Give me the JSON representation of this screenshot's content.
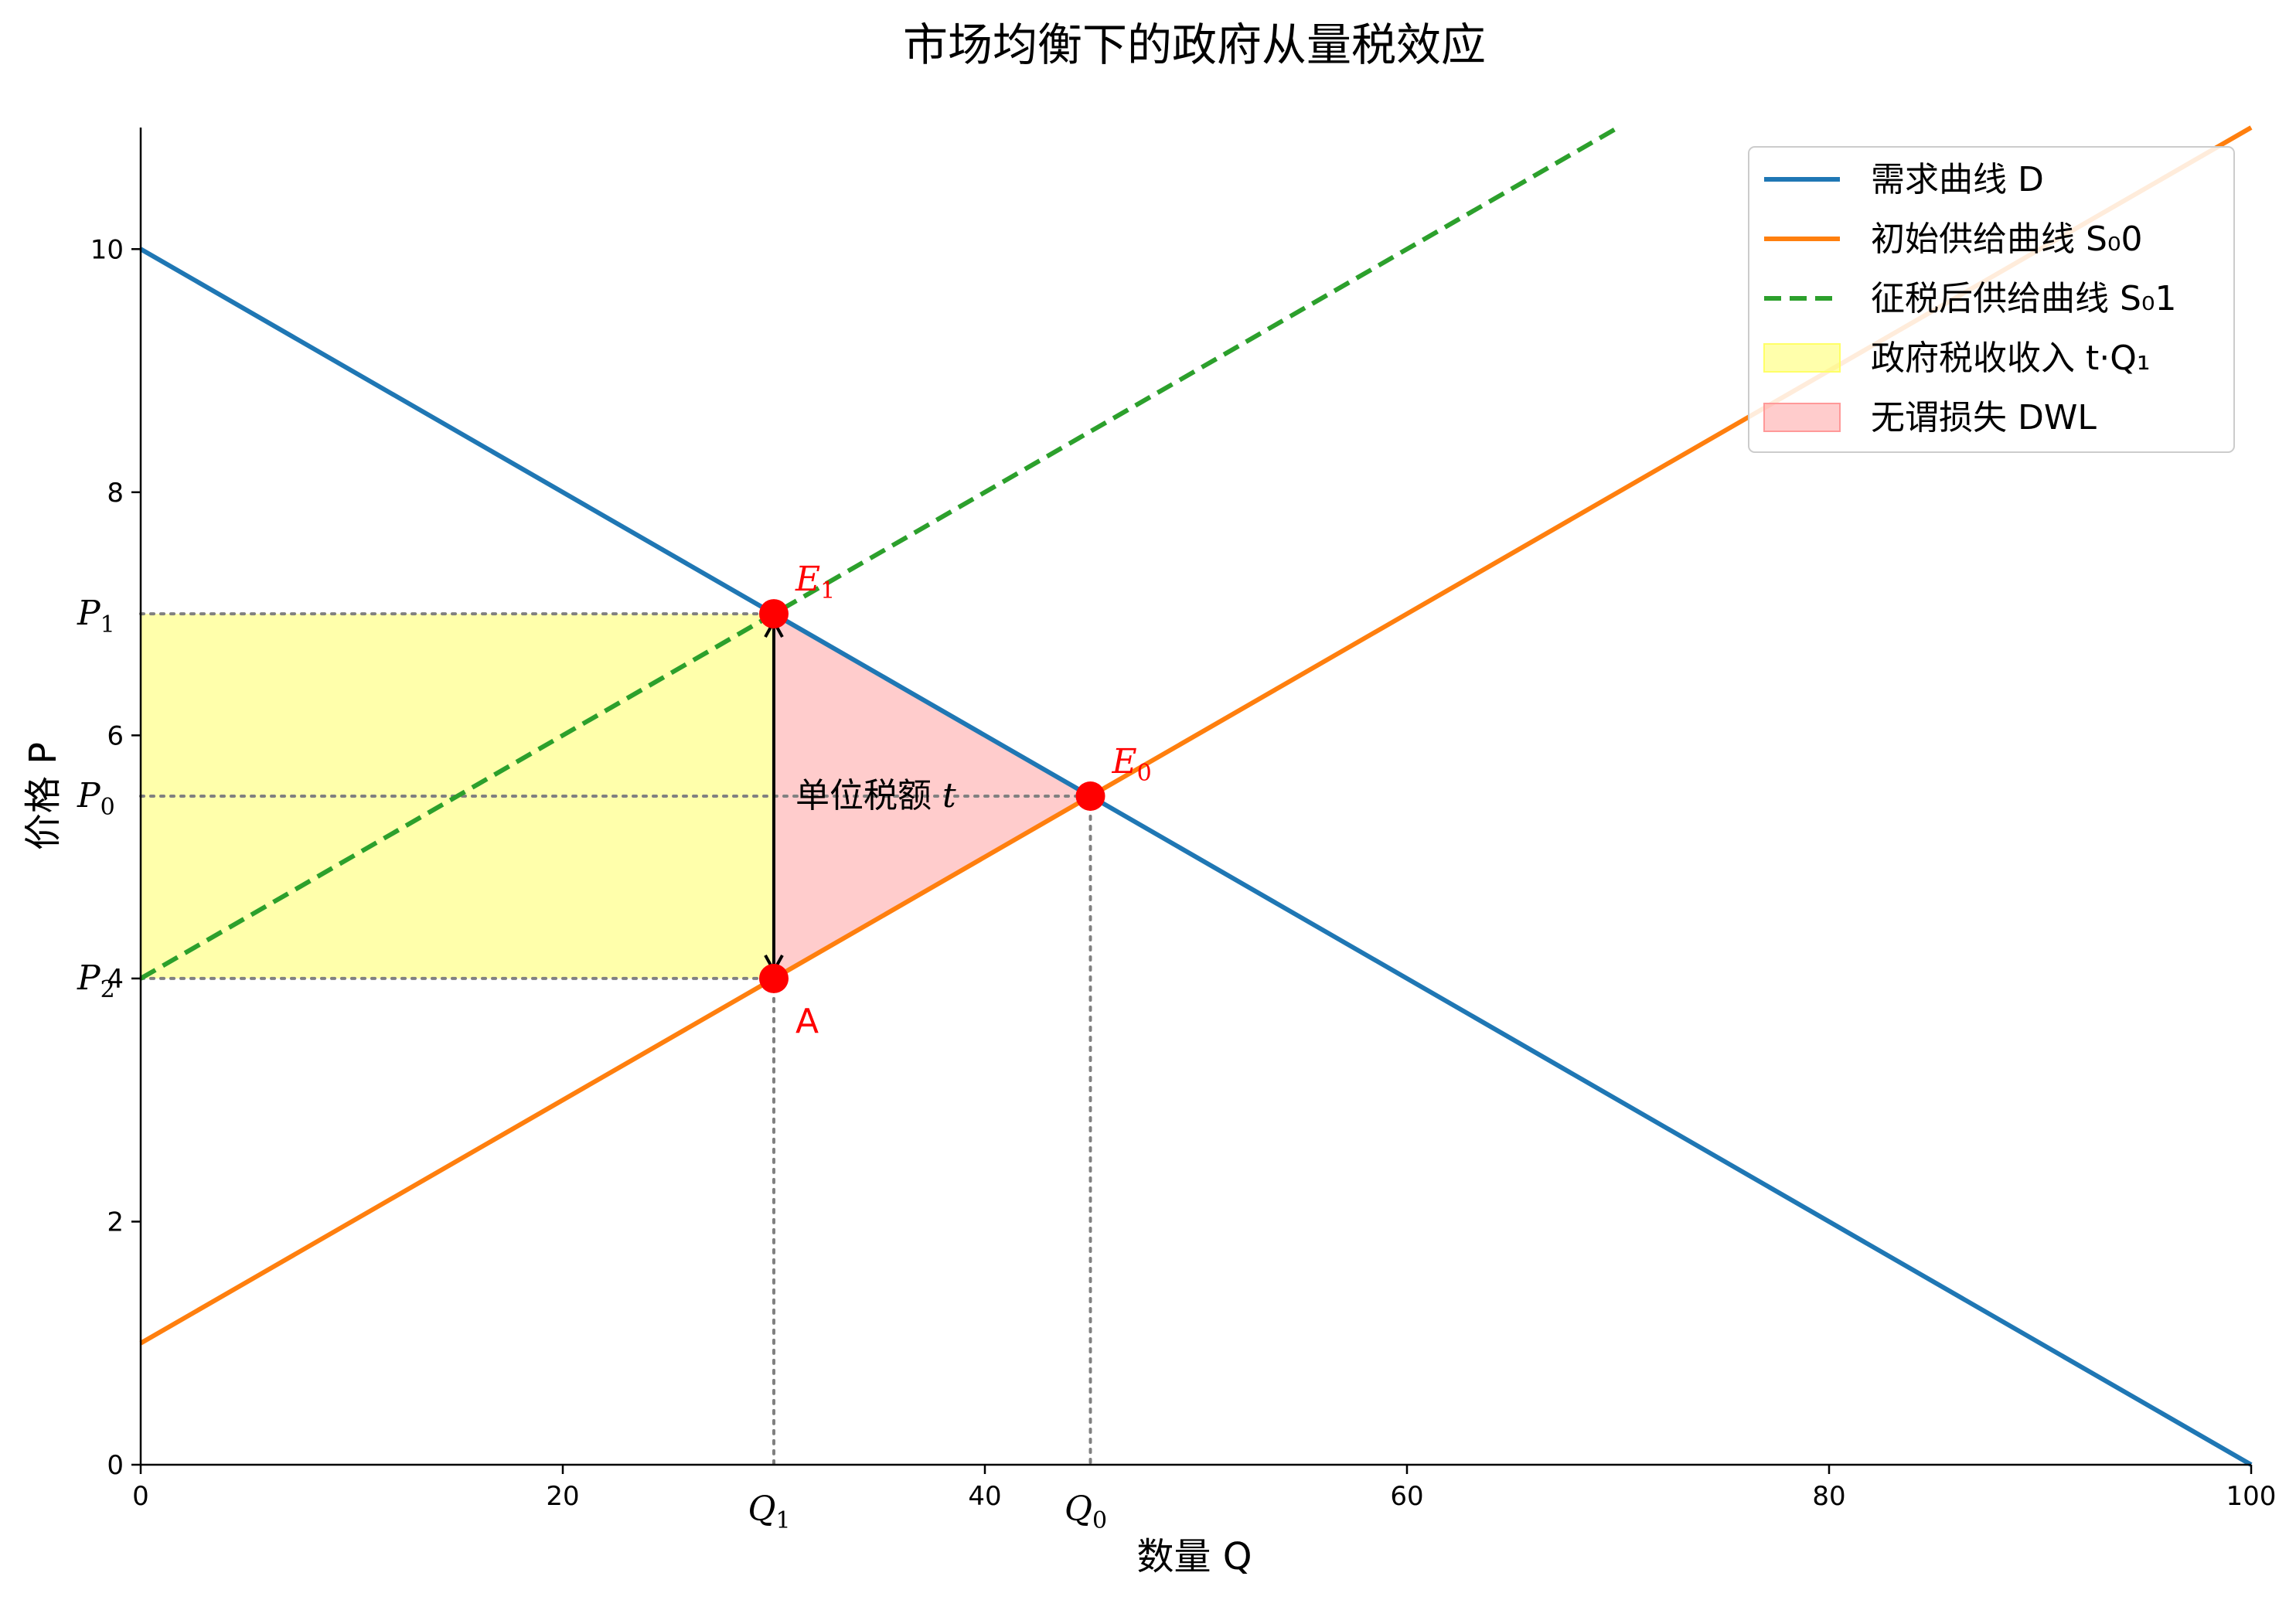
{
  "chart_data": {
    "type": "line",
    "title": "市场均衡下的政府从量税效应",
    "xlabel": "数量 Q",
    "ylabel": "价格 P",
    "xlim": [
      0,
      100
    ],
    "ylim": [
      0,
      11
    ],
    "x_ticks": [
      0,
      20,
      40,
      60,
      80,
      100
    ],
    "y_ticks": [
      0,
      2,
      4,
      6,
      8,
      10
    ],
    "grid": false,
    "legend_position": "top-right",
    "series": [
      {
        "name": "需求曲线 D",
        "color": "#1f77b4",
        "style": "solid",
        "x": [
          0,
          100
        ],
        "y": [
          10,
          0
        ]
      },
      {
        "name": "初始供给曲线 S₀0",
        "color": "#ff7f0e",
        "style": "solid",
        "x": [
          0,
          100
        ],
        "y": [
          1,
          11
        ]
      },
      {
        "name": "征税后供给曲线 S₀1",
        "color": "#2ca02c",
        "style": "dashed",
        "x": [
          0,
          70
        ],
        "y": [
          4,
          11
        ]
      }
    ],
    "areas": [
      {
        "name": "政府税收收入 t·Q₁",
        "color": "#ffff66",
        "opacity": 0.55,
        "x": [
          0,
          30,
          30,
          0
        ],
        "y": [
          4,
          4,
          7,
          7
        ]
      },
      {
        "name": "无谓损失 DWL",
        "color": "#ff9999",
        "opacity": 0.5,
        "x": [
          30,
          45,
          30
        ],
        "y": [
          7,
          5.5,
          4
        ]
      }
    ],
    "points": [
      {
        "label_base": "E",
        "label_sub": "1",
        "x": 30,
        "y": 7,
        "color": "#ff0000"
      },
      {
        "label_base": "E",
        "label_sub": "0",
        "x": 45,
        "y": 5.5,
        "color": "#ff0000"
      },
      {
        "label_base": "A",
        "label_sub": "",
        "x": 30,
        "y": 4,
        "color": "#ff0000"
      }
    ],
    "reference_lines": {
      "horizontal": [
        7,
        5.5,
        4
      ],
      "vertical": [
        30,
        45
      ]
    },
    "price_marks": [
      {
        "base": "P",
        "sub": "1",
        "y": 7
      },
      {
        "base": "P",
        "sub": "0",
        "y": 5.5
      },
      {
        "base": "P",
        "sub": "2",
        "y": 4
      }
    ],
    "quantity_marks": [
      {
        "base": "Q",
        "sub": "1",
        "x": 30
      },
      {
        "base": "Q",
        "sub": "0",
        "x": 45
      }
    ],
    "tax_arrow": {
      "x": 30,
      "y_from": 4,
      "y_to": 7,
      "label": "单位税额",
      "label_var": "t"
    }
  }
}
